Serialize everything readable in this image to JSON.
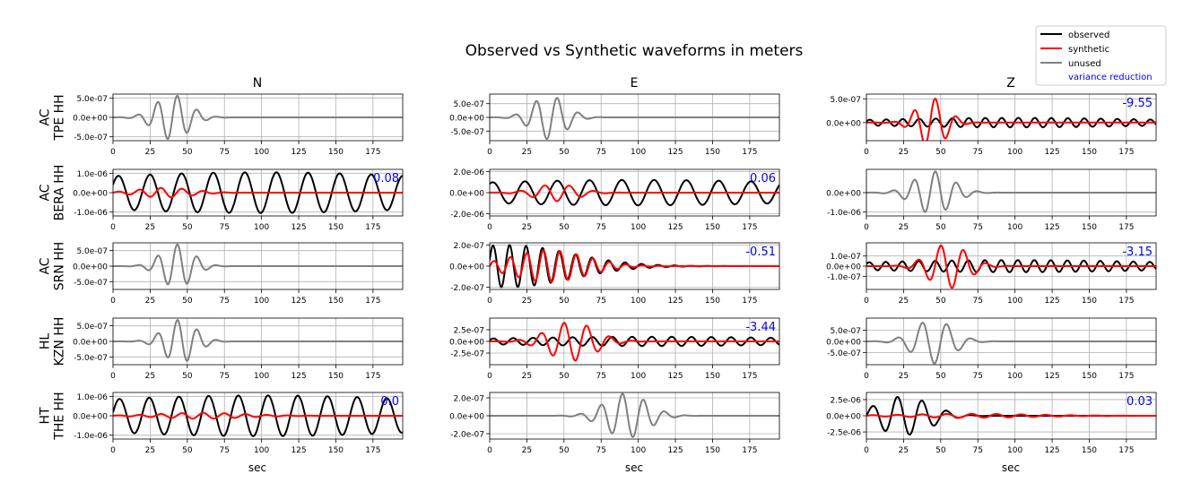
{
  "title": "Observed vs Synthetic waveforms in meters",
  "column_titles": [
    "N",
    "E",
    "Z"
  ],
  "xlabel": "sec",
  "legend": {
    "placement": "top-right",
    "observed": "observed",
    "synthetic": "synthetic",
    "unused": "unused",
    "variance_reduction": "variance reduction"
  },
  "colors": {
    "observed": "#000000",
    "synthetic": "#ff0000",
    "unused": "#808080",
    "variance_reduction": "#0000ff",
    "grid": "#b0b0b0"
  },
  "chart_data": {
    "type": "line",
    "grid": true,
    "xlim": [
      0,
      195
    ],
    "xticks": [
      0,
      25,
      50,
      75,
      100,
      125,
      150,
      175
    ],
    "rows": [
      {
        "station_label": [
          "AC",
          "TPE HH"
        ],
        "panels": [
          {
            "component": "N",
            "status": "unused",
            "vr": "",
            "ylim": [
              -6e-07,
              6e-07
            ],
            "yticks": [
              "5.0e-07",
              "0.0e+00",
              "-5.0e-07"
            ],
            "ytick_values": [
              5e-07,
              0,
              -5e-07
            ],
            "series": [
              {
                "kind": "unused",
                "amp": 5.8e-07,
                "center": 40,
                "freq": 0.075,
                "width": 16,
                "phase": 0
              }
            ]
          },
          {
            "component": "E",
            "status": "unused",
            "vr": "",
            "ylim": [
              -8.5e-07,
              8.5e-07
            ],
            "yticks": [
              "5.0e-07",
              "0.0e+00",
              "-5.0e-07"
            ],
            "ytick_values": [
              5e-07,
              0,
              -5e-07
            ],
            "series": [
              {
                "kind": "unused",
                "amp": 8e-07,
                "center": 40,
                "freq": 0.07,
                "width": 16,
                "phase": 0.4
              }
            ]
          },
          {
            "component": "Z",
            "status": "used",
            "vr": "-9.55",
            "ylim": [
              -3.8e-07,
              6e-07
            ],
            "yticks": [
              "5.0e-07",
              "0.0e+00"
            ],
            "ytick_values": [
              5e-07,
              0
            ],
            "series": [
              {
                "kind": "observed",
                "amp": 1e-07,
                "center": 100,
                "freq": 0.09,
                "width": 140,
                "phase": 0.3
              },
              {
                "kind": "synthetic",
                "amp": 5.2e-07,
                "center": 44,
                "freq": 0.07,
                "width": 14,
                "phase": 0
              }
            ]
          }
        ]
      },
      {
        "station_label": [
          "AC",
          "BERA HH"
        ],
        "panels": [
          {
            "component": "N",
            "status": "used",
            "vr": "0.08",
            "ylim": [
              -1.2e-06,
              1.2e-06
            ],
            "yticks": [
              "1.0e-06",
              "0.0e+00",
              "-1.0e-06"
            ],
            "ytick_values": [
              1e-06,
              0,
              -1e-06
            ],
            "series": [
              {
                "kind": "observed",
                "amp": 1.05e-06,
                "center": 100,
                "freq": 0.047,
                "width": 220,
                "phase": 0.5
              },
              {
                "kind": "synthetic",
                "amp": 2.5e-07,
                "center": 35,
                "freq": 0.07,
                "width": 25,
                "phase": 0
              }
            ]
          },
          {
            "component": "E",
            "status": "used",
            "vr": "0.06",
            "ylim": [
              -2.2e-06,
              2.2e-06
            ],
            "yticks": [
              "2.0e-06",
              "0.0e+00",
              "-2.0e-06"
            ],
            "ytick_values": [
              2e-06,
              0,
              -2e-06
            ],
            "series": [
              {
                "kind": "observed",
                "amp": 1.2e-06,
                "center": 100,
                "freq": 0.046,
                "width": 220,
                "phase": 1.0
              },
              {
                "kind": "synthetic",
                "amp": 8e-07,
                "center": 45,
                "freq": 0.06,
                "width": 20,
                "phase": 0.2
              }
            ]
          },
          {
            "component": "Z",
            "status": "unused",
            "vr": "",
            "ylim": [
              -1.2e-06,
              1.2e-06
            ],
            "yticks": [
              "0.0e+00",
              "-1.0e-06"
            ],
            "ytick_values": [
              0,
              -1e-06
            ],
            "series": [
              {
                "kind": "unused",
                "amp": 1.1e-06,
                "center": 45,
                "freq": 0.07,
                "width": 18,
                "phase": 0
              }
            ]
          }
        ]
      },
      {
        "station_label": [
          "AC",
          "SRN HH"
        ],
        "panels": [
          {
            "component": "N",
            "status": "unused",
            "vr": "",
            "ylim": [
              -7.5e-07,
              7.5e-07
            ],
            "yticks": [
              "5.0e-07",
              "0.0e+00",
              "-5.0e-07"
            ],
            "ytick_values": [
              5e-07,
              0,
              -5e-07
            ],
            "series": [
              {
                "kind": "unused",
                "amp": 7e-07,
                "center": 43,
                "freq": 0.075,
                "width": 15,
                "phase": 0
              }
            ]
          },
          {
            "component": "E",
            "status": "used",
            "vr": "-0.51",
            "ylim": [
              -2.2e-07,
              2.2e-07
            ],
            "yticks": [
              "2.0e-07",
              "0.0e+00",
              "-2.0e-07"
            ],
            "ytick_values": [
              2e-07,
              0,
              -2e-07
            ],
            "series": [
              {
                "kind": "observed",
                "amp": 2e-07,
                "center": 12,
                "freq": 0.09,
                "width": 60,
                "phase": 0.3
              },
              {
                "kind": "synthetic",
                "amp": 1.5e-07,
                "center": 40,
                "freq": 0.09,
                "width": 35,
                "phase": 0
              }
            ]
          },
          {
            "component": "Z",
            "status": "used",
            "vr": "-3.15",
            "ylim": [
              -2.3e-07,
              2.3e-07
            ],
            "yticks": [
              "1.0e-07",
              "0.0e+00",
              "-1.0e-07"
            ],
            "ytick_values": [
              1e-07,
              0,
              -1e-07
            ],
            "series": [
              {
                "kind": "observed",
                "amp": 6e-08,
                "center": 100,
                "freq": 0.09,
                "width": 150,
                "phase": 0.5
              },
              {
                "kind": "synthetic",
                "amp": 2.2e-07,
                "center": 55,
                "freq": 0.065,
                "width": 18,
                "phase": 0
              }
            ]
          }
        ]
      },
      {
        "station_label": [
          "HL",
          "KZN HH"
        ],
        "panels": [
          {
            "component": "N",
            "status": "unused",
            "vr": "",
            "ylim": [
              -7.5e-07,
              7.5e-07
            ],
            "yticks": [
              "5.0e-07",
              "0.0e+00",
              "-5.0e-07"
            ],
            "ytick_values": [
              5e-07,
              0,
              -5e-07
            ],
            "series": [
              {
                "kind": "unused",
                "amp": 7e-07,
                "center": 45,
                "freq": 0.075,
                "width": 15,
                "phase": 0
              }
            ]
          },
          {
            "component": "E",
            "status": "used",
            "vr": "-3.44",
            "ylim": [
              -5e-07,
              5e-07
            ],
            "yticks": [
              "2.5e-07",
              "0.0e+00",
              "-2.5e-07"
            ],
            "ytick_values": [
              2.5e-07,
              0,
              -2.5e-07
            ],
            "series": [
              {
                "kind": "observed",
                "amp": 1e-07,
                "center": 110,
                "freq": 0.075,
                "width": 160,
                "phase": 0.4
              },
              {
                "kind": "synthetic",
                "amp": 4.2e-07,
                "center": 55,
                "freq": 0.065,
                "width": 22,
                "phase": 0
              }
            ]
          },
          {
            "component": "Z",
            "status": "unused",
            "vr": "",
            "ylim": [
              -1.05e-06,
              1.05e-06
            ],
            "yticks": [
              "5.0e-07",
              "0.0e+00",
              "-5.0e-07"
            ],
            "ytick_values": [
              5e-07,
              0,
              -5e-07
            ],
            "series": [
              {
                "kind": "unused",
                "amp": 1e-06,
                "center": 45,
                "freq": 0.06,
                "width": 18,
                "phase": 0
              }
            ]
          }
        ]
      },
      {
        "station_label": [
          "HT",
          "THE HH"
        ],
        "panels": [
          {
            "component": "N",
            "status": "used",
            "vr": "0.0",
            "ylim": [
              -1.2e-06,
              1.2e-06
            ],
            "yticks": [
              "1.0e-06",
              "0.0e+00",
              "-1.0e-06"
            ],
            "ytick_values": [
              1e-06,
              0,
              -1e-06
            ],
            "series": [
              {
                "kind": "observed",
                "amp": 1.05e-06,
                "center": 100,
                "freq": 0.05,
                "width": 220,
                "phase": 0.2
              },
              {
                "kind": "synthetic",
                "amp": 1.5e-07,
                "center": 60,
                "freq": 0.07,
                "width": 40,
                "phase": 0
              }
            ]
          },
          {
            "component": "E",
            "status": "unused",
            "vr": "",
            "ylim": [
              -2.6e-07,
              2.6e-07
            ],
            "yticks": [
              "2.0e-07",
              "0.0e+00",
              "-2.0e-07"
            ],
            "ytick_values": [
              2e-07,
              0,
              -2e-07
            ],
            "series": [
              {
                "kind": "unused",
                "amp": 2.5e-07,
                "center": 92,
                "freq": 0.07,
                "width": 20,
                "phase": 0
              }
            ]
          },
          {
            "component": "Z",
            "status": "used",
            "vr": "0.03",
            "ylim": [
              -3.6e-06,
              3.6e-06
            ],
            "yticks": [
              "2.5e-06",
              "0.0e+00",
              "-2.5e-06"
            ],
            "ytick_values": [
              2.5e-06,
              0,
              -2.5e-06
            ],
            "series": [
              {
                "kind": "observed",
                "amp": 3e-06,
                "center": 25,
                "freq": 0.06,
                "width": 25,
                "phase": 0
              },
              {
                "kind": "synthetic",
                "amp": 3e-07,
                "center": 70,
                "freq": 0.06,
                "width": 60,
                "phase": 0
              }
            ]
          }
        ]
      }
    ]
  }
}
